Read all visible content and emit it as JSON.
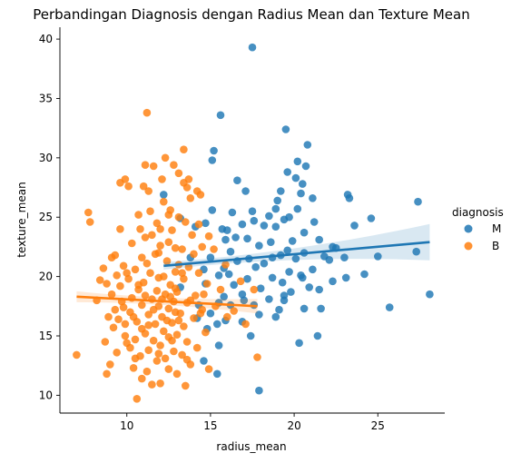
{
  "chart_data": {
    "type": "scatter",
    "title": "Perbandingan Diagnosis dengan Radius Mean dan Texture Mean",
    "xlabel": "radius_mean",
    "ylabel": "texture_mean",
    "xlim": [
      6.0,
      29.0
    ],
    "ylim": [
      8.5,
      41.0
    ],
    "xticks": [
      10,
      15,
      20,
      25
    ],
    "yticks": [
      10,
      15,
      20,
      25,
      30,
      35,
      40
    ],
    "legend": {
      "title": "diagnosis",
      "placement": "right",
      "entries": [
        "M",
        "B"
      ]
    },
    "grid": false,
    "series": [
      {
        "name": "M",
        "color": "#1f77b4",
        "points": [
          [
            17.5,
            39.3
          ],
          [
            15.6,
            33.6
          ],
          [
            19.5,
            32.4
          ],
          [
            20.8,
            31.1
          ],
          [
            15.2,
            30.6
          ],
          [
            20.2,
            29.7
          ],
          [
            15.1,
            29.8
          ],
          [
            20.7,
            29.3
          ],
          [
            19.6,
            28.8
          ],
          [
            20.1,
            28.3
          ],
          [
            16.6,
            28.1
          ],
          [
            20.5,
            27.8
          ],
          [
            19.2,
            27.2
          ],
          [
            21.1,
            26.6
          ],
          [
            20.4,
            27.0
          ],
          [
            23.2,
            26.9
          ],
          [
            27.4,
            26.3
          ],
          [
            17.1,
            27.2
          ],
          [
            12.2,
            26.9
          ],
          [
            19.0,
            26.4
          ],
          [
            18.9,
            25.7
          ],
          [
            17.5,
            25.5
          ],
          [
            15.1,
            25.6
          ],
          [
            20.2,
            25.7
          ],
          [
            23.3,
            26.6
          ],
          [
            24.6,
            24.9
          ],
          [
            19.7,
            25.0
          ],
          [
            18.5,
            25.1
          ],
          [
            21.2,
            24.6
          ],
          [
            16.3,
            25.4
          ],
          [
            17.6,
            24.7
          ],
          [
            13.2,
            24.9
          ],
          [
            14.7,
            24.5
          ],
          [
            16.9,
            24.4
          ],
          [
            19.4,
            24.8
          ],
          [
            18.2,
            24.3
          ],
          [
            23.6,
            24.3
          ],
          [
            15.7,
            24.0
          ],
          [
            16.0,
            23.9
          ],
          [
            20.6,
            23.7
          ],
          [
            18.9,
            24.2
          ],
          [
            14.1,
            24.2
          ],
          [
            21.5,
            23.1
          ],
          [
            16.5,
            23.3
          ],
          [
            19.9,
            23.0
          ],
          [
            18.6,
            22.9
          ],
          [
            15.9,
            23.1
          ],
          [
            17.2,
            23.2
          ],
          [
            22.5,
            22.4
          ],
          [
            19.6,
            22.2
          ],
          [
            17.9,
            22.6
          ],
          [
            20.6,
            22.0
          ],
          [
            16.2,
            22.1
          ],
          [
            17.3,
            21.5
          ],
          [
            18.7,
            21.6
          ],
          [
            21.8,
            21.7
          ],
          [
            15.0,
            21.6
          ],
          [
            19.2,
            21.8
          ],
          [
            20.1,
            21.5
          ],
          [
            16.6,
            21.3
          ],
          [
            13.8,
            21.6
          ],
          [
            22.1,
            21.4
          ],
          [
            18.2,
            21.1
          ],
          [
            17.7,
            20.8
          ],
          [
            21.1,
            20.6
          ],
          [
            14.6,
            20.6
          ],
          [
            19.7,
            20.4
          ],
          [
            16.1,
            20.2
          ],
          [
            20.4,
            20.1
          ],
          [
            15.5,
            20.1
          ],
          [
            18.7,
            19.9
          ],
          [
            17.2,
            19.8
          ],
          [
            19.3,
            19.5
          ],
          [
            16.4,
            19.3
          ],
          [
            20.9,
            19.1
          ],
          [
            14.7,
            19.4
          ],
          [
            18.0,
            19.0
          ],
          [
            21.5,
            18.9
          ],
          [
            19.8,
            18.7
          ],
          [
            16.9,
            18.5
          ],
          [
            15.8,
            18.3
          ],
          [
            18.5,
            18.1
          ],
          [
            19.4,
            18.4
          ],
          [
            24.2,
            20.2
          ],
          [
            25.0,
            21.7
          ],
          [
            27.3,
            22.1
          ],
          [
            28.1,
            18.5
          ],
          [
            23.1,
            19.9
          ],
          [
            22.3,
            19.6
          ],
          [
            20.5,
            19.9
          ],
          [
            19.4,
            18.0
          ],
          [
            17.0,
            18.0
          ],
          [
            14.3,
            17.6
          ],
          [
            17.6,
            17.6
          ],
          [
            15.5,
            17.8
          ],
          [
            16.2,
            17.6
          ],
          [
            15.0,
            16.9
          ],
          [
            17.9,
            16.8
          ],
          [
            20.6,
            17.3
          ],
          [
            21.6,
            17.3
          ],
          [
            14.2,
            16.5
          ],
          [
            15.9,
            16.3
          ],
          [
            18.9,
            16.6
          ],
          [
            15.4,
            16.0
          ],
          [
            14.8,
            15.6
          ],
          [
            17.4,
            15.0
          ],
          [
            21.4,
            15.0
          ],
          [
            15.5,
            14.2
          ],
          [
            20.3,
            14.4
          ],
          [
            25.7,
            17.4
          ],
          [
            16.9,
            16.2
          ],
          [
            14.6,
            12.9
          ],
          [
            15.4,
            11.8
          ],
          [
            17.9,
            10.4
          ],
          [
            19.1,
            17.2
          ],
          [
            22.3,
            22.5
          ],
          [
            15.8,
            20.7
          ],
          [
            13.2,
            19.1
          ],
          [
            23.0,
            21.6
          ]
        ],
        "regression": {
          "x": [
            12.2,
            28.1
          ],
          "y": [
            20.9,
            22.9
          ]
        }
      },
      {
        "name": "B",
        "color": "#ff7f0e",
        "points": [
          [
            11.2,
            33.8
          ],
          [
            13.4,
            30.7
          ],
          [
            12.3,
            30.0
          ],
          [
            11.1,
            29.4
          ],
          [
            12.8,
            29.4
          ],
          [
            11.6,
            29.3
          ],
          [
            13.1,
            28.7
          ],
          [
            12.1,
            28.2
          ],
          [
            9.9,
            28.2
          ],
          [
            9.6,
            27.9
          ],
          [
            13.7,
            28.2
          ],
          [
            10.1,
            27.6
          ],
          [
            11.0,
            27.6
          ],
          [
            13.4,
            27.9
          ],
          [
            14.2,
            27.2
          ],
          [
            11.3,
            27.2
          ],
          [
            14.4,
            26.9
          ],
          [
            13.6,
            27.5
          ],
          [
            12.2,
            26.3
          ],
          [
            10.7,
            25.2
          ],
          [
            12.5,
            25.2
          ],
          [
            13.1,
            25.0
          ],
          [
            11.8,
            24.5
          ],
          [
            7.7,
            25.4
          ],
          [
            7.8,
            24.6
          ],
          [
            12.0,
            24.0
          ],
          [
            13.5,
            24.6
          ],
          [
            9.6,
            24.0
          ],
          [
            10.8,
            24.0
          ],
          [
            12.7,
            23.9
          ],
          [
            11.5,
            23.5
          ],
          [
            13.9,
            23.5
          ],
          [
            11.1,
            23.3
          ],
          [
            12.5,
            22.9
          ],
          [
            10.3,
            22.8
          ],
          [
            14.5,
            22.5
          ],
          [
            13.3,
            22.3
          ],
          [
            12.0,
            22.6
          ],
          [
            11.7,
            21.9
          ],
          [
            9.3,
            21.8
          ],
          [
            10.9,
            21.6
          ],
          [
            14.0,
            21.9
          ],
          [
            12.4,
            21.3
          ],
          [
            11.2,
            21.1
          ],
          [
            13.1,
            21.0
          ],
          [
            9.8,
            20.9
          ],
          [
            13.7,
            20.8
          ],
          [
            10.5,
            20.6
          ],
          [
            12.9,
            20.4
          ],
          [
            8.6,
            20.7
          ],
          [
            9.4,
            20.1
          ],
          [
            11.4,
            20.3
          ],
          [
            14.3,
            20.3
          ],
          [
            12.2,
            20.0
          ],
          [
            10.1,
            19.8
          ],
          [
            13.4,
            19.8
          ],
          [
            11.0,
            19.5
          ],
          [
            8.8,
            19.4
          ],
          [
            12.6,
            19.3
          ],
          [
            14.8,
            19.4
          ],
          [
            9.6,
            19.2
          ],
          [
            10.7,
            18.9
          ],
          [
            11.8,
            18.8
          ],
          [
            13.0,
            18.7
          ],
          [
            12.3,
            18.5
          ],
          [
            9.1,
            18.5
          ],
          [
            14.1,
            18.4
          ],
          [
            10.3,
            18.2
          ],
          [
            11.5,
            18.1
          ],
          [
            8.2,
            18.0
          ],
          [
            12.8,
            17.9
          ],
          [
            13.6,
            17.8
          ],
          [
            10.9,
            17.6
          ],
          [
            11.9,
            17.5
          ],
          [
            9.8,
            17.4
          ],
          [
            12.5,
            17.3
          ],
          [
            14.5,
            17.2
          ],
          [
            10.2,
            17.0
          ],
          [
            13.2,
            16.9
          ],
          [
            11.3,
            16.8
          ],
          [
            12.1,
            16.6
          ],
          [
            8.9,
            16.6
          ],
          [
            9.5,
            16.4
          ],
          [
            14.0,
            16.5
          ],
          [
            10.6,
            16.2
          ],
          [
            12.7,
            16.1
          ],
          [
            11.7,
            16.0
          ],
          [
            13.4,
            15.8
          ],
          [
            9.2,
            15.7
          ],
          [
            10.9,
            15.6
          ],
          [
            12.2,
            15.4
          ],
          [
            14.7,
            15.3
          ],
          [
            11.1,
            15.2
          ],
          [
            13.0,
            15.1
          ],
          [
            9.9,
            15.0
          ],
          [
            12.5,
            14.9
          ],
          [
            10.5,
            14.7
          ],
          [
            11.6,
            14.6
          ],
          [
            13.6,
            14.5
          ],
          [
            8.7,
            14.5
          ],
          [
            12.0,
            14.2
          ],
          [
            10.2,
            14.0
          ],
          [
            14.2,
            14.0
          ],
          [
            11.3,
            13.8
          ],
          [
            12.8,
            13.7
          ],
          [
            9.4,
            13.6
          ],
          [
            13.3,
            13.4
          ],
          [
            10.8,
            13.3
          ],
          [
            12.3,
            13.1
          ],
          [
            7.0,
            13.4
          ],
          [
            11.8,
            12.9
          ],
          [
            9.0,
            12.6
          ],
          [
            13.8,
            12.6
          ],
          [
            10.4,
            12.3
          ],
          [
            12.5,
            12.2
          ],
          [
            11.2,
            12.0
          ],
          [
            8.8,
            11.8
          ],
          [
            13.0,
            11.8
          ],
          [
            14.9,
            12.2
          ],
          [
            10.9,
            11.4
          ],
          [
            12.0,
            11.0
          ],
          [
            11.5,
            10.9
          ],
          [
            13.5,
            10.8
          ],
          [
            10.6,
            9.7
          ],
          [
            17.8,
            13.2
          ],
          [
            16.0,
            16.6
          ],
          [
            16.4,
            17.1
          ],
          [
            15.3,
            17.5
          ],
          [
            17.1,
            16.0
          ],
          [
            15.6,
            18.9
          ],
          [
            16.8,
            19.6
          ],
          [
            17.6,
            18.9
          ],
          [
            15.9,
            21.0
          ],
          [
            15.2,
            22.3
          ],
          [
            14.9,
            23.4
          ],
          [
            14.3,
            24.4
          ],
          [
            12.9,
            22.4
          ],
          [
            11.9,
            22.0
          ],
          [
            10.0,
            20.3
          ],
          [
            9.1,
            21.6
          ],
          [
            12.6,
            25.6
          ],
          [
            11.4,
            25.5
          ],
          [
            13.8,
            26.6
          ],
          [
            9.7,
            17.9
          ],
          [
            10.4,
            16.6
          ],
          [
            11.6,
            17.2
          ],
          [
            12.4,
            16.3
          ],
          [
            13.1,
            16.3
          ],
          [
            12.1,
            18.1
          ],
          [
            11.9,
            19.9
          ],
          [
            12.9,
            19.0
          ],
          [
            13.3,
            20.3
          ],
          [
            11.1,
            18.4
          ],
          [
            12.6,
            18.3
          ],
          [
            13.8,
            18.0
          ],
          [
            14.6,
            18.5
          ],
          [
            10.7,
            19.3
          ],
          [
            9.9,
            16.0
          ],
          [
            8.4,
            19.7
          ],
          [
            9.3,
            17.2
          ],
          [
            10.5,
            13.1
          ],
          [
            11.9,
            13.5
          ],
          [
            13.6,
            13.0
          ],
          [
            12.7,
            14.6
          ],
          [
            11.3,
            15.9
          ],
          [
            14.4,
            16.9
          ],
          [
            10.0,
            14.4
          ],
          [
            12.9,
            17.0
          ]
        ],
        "regression": {
          "x": [
            7.0,
            17.8
          ],
          "y": [
            18.3,
            17.5
          ]
        }
      }
    ]
  }
}
